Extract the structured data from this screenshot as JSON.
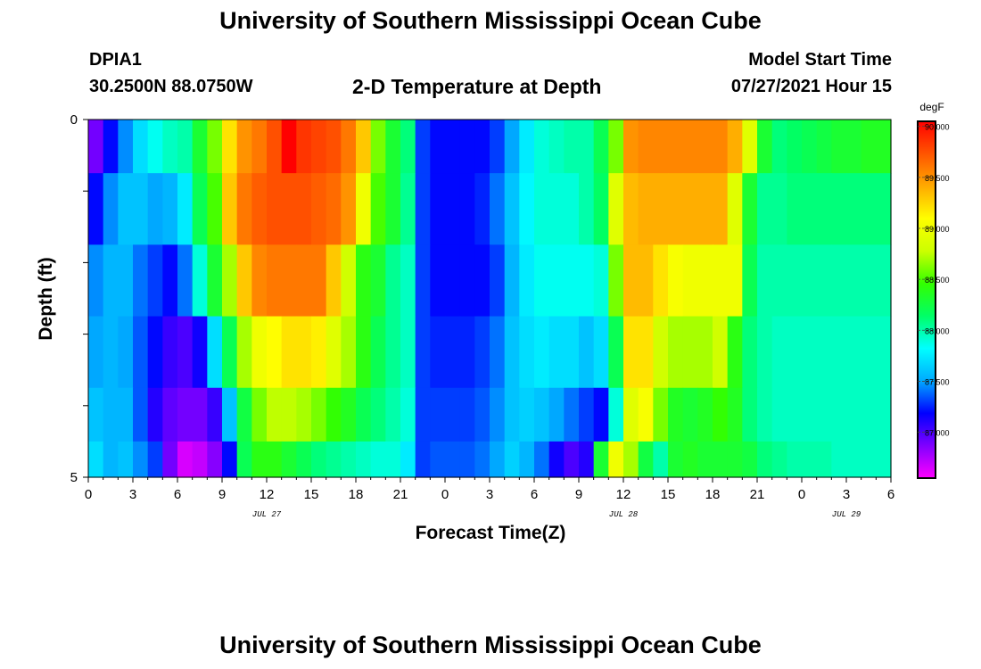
{
  "header": {
    "title": "University of Southern Mississippi Ocean Cube",
    "station_id": "DPIA1",
    "station_coords": "30.2500N  88.0750W",
    "plot_title": "2-D Temperature at Depth",
    "model_label": "Model Start Time",
    "model_time": "07/27/2021 Hour 15"
  },
  "footer": {
    "title": "University of Southern Mississippi Ocean Cube"
  },
  "chart_data": {
    "type": "heatmap",
    "title": "2-D Temperature at Depth",
    "xlabel": "Forecast Time(Z)",
    "ylabel": "Depth (ft)",
    "x_ticks": [
      "0",
      "3",
      "6",
      "9",
      "12",
      "15",
      "18",
      "21",
      "0",
      "3",
      "6",
      "9",
      "12",
      "15",
      "18",
      "21",
      "0",
      "3",
      "6"
    ],
    "date_labels": [
      "JUL 27",
      "JUL 28",
      "JUL 29"
    ],
    "y_ticks": [
      "0",
      "5"
    ],
    "ylim": [
      0,
      5
    ],
    "xlim_hours": [
      0,
      54
    ],
    "colorbar": {
      "unit": "degF",
      "min": 86.55,
      "max": 90.05,
      "tick_labels": [
        "90.000",
        "89.500",
        "89.000",
        "88.500",
        "88.000",
        "87.500",
        "87.000"
      ],
      "tick_values": [
        90.0,
        89.5,
        89.0,
        88.5,
        88.0,
        87.5,
        87.0
      ]
    },
    "depth_layers_ft": [
      0.25,
      1.25,
      2.25,
      3.25,
      4.25,
      4.75
    ],
    "hours": [
      0,
      1,
      2,
      3,
      4,
      5,
      6,
      7,
      8,
      9,
      10,
      11,
      12,
      13,
      14,
      15,
      16,
      17,
      18,
      19,
      20,
      21,
      22,
      23,
      24,
      25,
      26,
      27,
      28,
      29,
      30,
      31,
      32,
      33,
      34,
      35,
      36,
      37,
      38,
      39,
      40,
      41,
      42,
      43,
      44,
      45,
      46,
      47,
      48,
      49,
      50,
      51,
      52,
      53
    ],
    "values": [
      [
        86.9,
        87.2,
        87.45,
        87.7,
        87.85,
        87.95,
        88.0,
        88.3,
        88.6,
        89.2,
        89.5,
        89.6,
        89.75,
        90.05,
        89.85,
        89.8,
        89.75,
        89.6,
        89.3,
        88.6,
        88.3,
        88.1,
        87.3,
        87.2,
        87.2,
        87.2,
        87.2,
        87.3,
        87.5,
        87.75,
        87.9,
        87.95,
        88.0,
        88.0,
        88.2,
        88.6,
        89.5,
        89.55,
        89.55,
        89.55,
        89.55,
        89.55,
        89.55,
        89.4,
        88.9,
        88.3,
        88.1,
        88.15,
        88.2,
        88.25,
        88.3,
        88.3,
        88.35,
        88.35
      ],
      [
        87.2,
        87.45,
        87.6,
        87.6,
        87.5,
        87.55,
        87.75,
        88.2,
        88.5,
        89.3,
        89.6,
        89.7,
        89.75,
        89.75,
        89.75,
        89.7,
        89.65,
        89.5,
        89.0,
        88.5,
        88.3,
        88.05,
        87.3,
        87.2,
        87.2,
        87.2,
        87.25,
        87.4,
        87.6,
        87.8,
        87.9,
        87.9,
        87.9,
        88.0,
        88.15,
        88.9,
        89.35,
        89.4,
        89.4,
        89.4,
        89.4,
        89.4,
        89.4,
        88.9,
        88.3,
        88.05,
        88.05,
        88.1,
        88.1,
        88.1,
        88.1,
        88.1,
        88.1,
        88.1
      ],
      [
        87.45,
        87.55,
        87.55,
        87.4,
        87.3,
        87.2,
        87.4,
        87.9,
        88.3,
        88.7,
        89.3,
        89.55,
        89.6,
        89.6,
        89.6,
        89.6,
        89.3,
        88.8,
        88.4,
        88.3,
        88.05,
        87.95,
        87.3,
        87.2,
        87.2,
        87.2,
        87.2,
        87.3,
        87.55,
        87.75,
        87.85,
        87.85,
        87.85,
        87.85,
        87.9,
        88.6,
        89.35,
        89.35,
        89.2,
        89.05,
        89.0,
        89.0,
        89.0,
        89.0,
        88.2,
        88.0,
        88.0,
        88.0,
        88.0,
        88.0,
        88.0,
        88.0,
        88.0,
        88.0
      ],
      [
        87.5,
        87.55,
        87.5,
        87.35,
        87.2,
        87.05,
        87.0,
        87.15,
        87.7,
        88.2,
        88.7,
        89.0,
        89.1,
        89.2,
        89.2,
        89.15,
        88.9,
        88.7,
        88.4,
        88.2,
        88.05,
        87.95,
        87.3,
        87.25,
        87.25,
        87.25,
        87.3,
        87.4,
        87.6,
        87.7,
        87.75,
        87.7,
        87.7,
        87.6,
        87.7,
        88.2,
        89.2,
        89.2,
        88.8,
        88.7,
        88.7,
        88.7,
        88.8,
        88.4,
        88.1,
        88.0,
        87.95,
        87.95,
        87.95,
        87.95,
        87.95,
        87.95,
        87.95,
        87.95
      ],
      [
        87.6,
        87.55,
        87.55,
        87.35,
        87.1,
        86.95,
        86.9,
        86.9,
        87.05,
        87.6,
        88.25,
        88.6,
        88.75,
        88.75,
        88.7,
        88.6,
        88.45,
        88.35,
        88.2,
        88.1,
        88.0,
        87.9,
        87.3,
        87.3,
        87.3,
        87.3,
        87.35,
        87.45,
        87.6,
        87.65,
        87.6,
        87.5,
        87.4,
        87.3,
        87.2,
        87.9,
        88.9,
        89.05,
        88.6,
        88.35,
        88.3,
        88.35,
        88.45,
        88.35,
        88.1,
        88.0,
        87.95,
        87.95,
        87.95,
        87.95,
        87.95,
        87.95,
        87.95,
        87.95
      ],
      [
        87.7,
        87.55,
        87.6,
        87.45,
        87.3,
        86.9,
        86.65,
        86.7,
        86.85,
        87.2,
        88.2,
        88.4,
        88.4,
        88.3,
        88.2,
        88.1,
        88.05,
        88.0,
        87.95,
        87.9,
        87.9,
        87.75,
        87.3,
        87.35,
        87.35,
        87.35,
        87.4,
        87.5,
        87.65,
        87.55,
        87.4,
        87.15,
        87.0,
        87.1,
        88.3,
        89.0,
        88.7,
        88.25,
        88.0,
        88.3,
        88.35,
        88.3,
        88.3,
        88.3,
        88.25,
        88.1,
        88.05,
        88.0,
        88.0,
        88.0,
        87.95,
        87.95,
        87.95,
        87.95
      ]
    ],
    "grid": false,
    "colorbar_position": "right"
  },
  "colors": {
    "scale": [
      "#ff00ff",
      "#8000ff",
      "#0000ff",
      "#00aaff",
      "#00ffff",
      "#00ff66",
      "#33ff00",
      "#ccff00",
      "#ffff00",
      "#ffaa00",
      "#ff5500",
      "#ff0000"
    ]
  }
}
